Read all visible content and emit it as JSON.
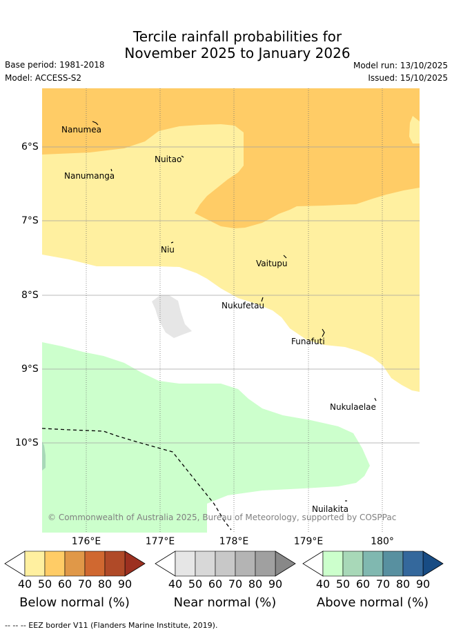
{
  "title": {
    "line1": "Tercile rainfall probabilities for",
    "line2": "November 2025 to January 2026"
  },
  "meta": {
    "base_period": "Base period: 1981-2018",
    "model": "Model: ACCESS-S2",
    "model_run": "Model run: 13/10/2025",
    "issued": "Issued: 15/10/2025"
  },
  "axes": {
    "lat_labels": [
      "6°S",
      "7°S",
      "8°S",
      "9°S",
      "10°S"
    ],
    "lon_labels": [
      "176°E",
      "177°E",
      "178°E",
      "179°E",
      "180°"
    ]
  },
  "places": [
    {
      "name": "Nanumea"
    },
    {
      "name": "Nuitao"
    },
    {
      "name": "Nanumanga"
    },
    {
      "name": "Niu"
    },
    {
      "name": "Vaitupu"
    },
    {
      "name": "Nukufetau"
    },
    {
      "name": "Funafuti"
    },
    {
      "name": "Nukulaelae"
    },
    {
      "name": "Nuilakita"
    }
  ],
  "copyright": "© Commonwealth of Australia 2025, Bureau of Meteorology, supported by COSPPac",
  "colorbars": [
    {
      "label": "Below normal (%)",
      "ticks": [
        "40",
        "50",
        "60",
        "70",
        "80",
        "90"
      ],
      "colors": [
        "#fff0a0",
        "#ffcc66",
        "#e09848",
        "#d06830",
        "#b04a28",
        "#9c3020"
      ]
    },
    {
      "label": "Near normal (%)",
      "ticks": [
        "40",
        "50",
        "60",
        "70",
        "80",
        "90"
      ],
      "colors": [
        "#e6e6e6",
        "#d8d8d8",
        "#c8c8c8",
        "#b4b4b4",
        "#a0a0a0",
        "#888888"
      ]
    },
    {
      "label": "Above normal (%)",
      "ticks": [
        "40",
        "50",
        "60",
        "70",
        "80",
        "90"
      ],
      "colors": [
        "#ccffcc",
        "#a8d8b8",
        "#80b8b0",
        "#5890a0",
        "#34689c",
        "#184c84"
      ]
    }
  ],
  "footnote": "-- -- -- EEZ border V11 (Flanders Marine Institute, 2019).",
  "colors": {
    "below_40": "#fff0a0",
    "below_50": "#ffcc66",
    "near_40": "#e6e6e6",
    "above_40": "#ccffcc",
    "above_50": "#a8d8b8"
  }
}
